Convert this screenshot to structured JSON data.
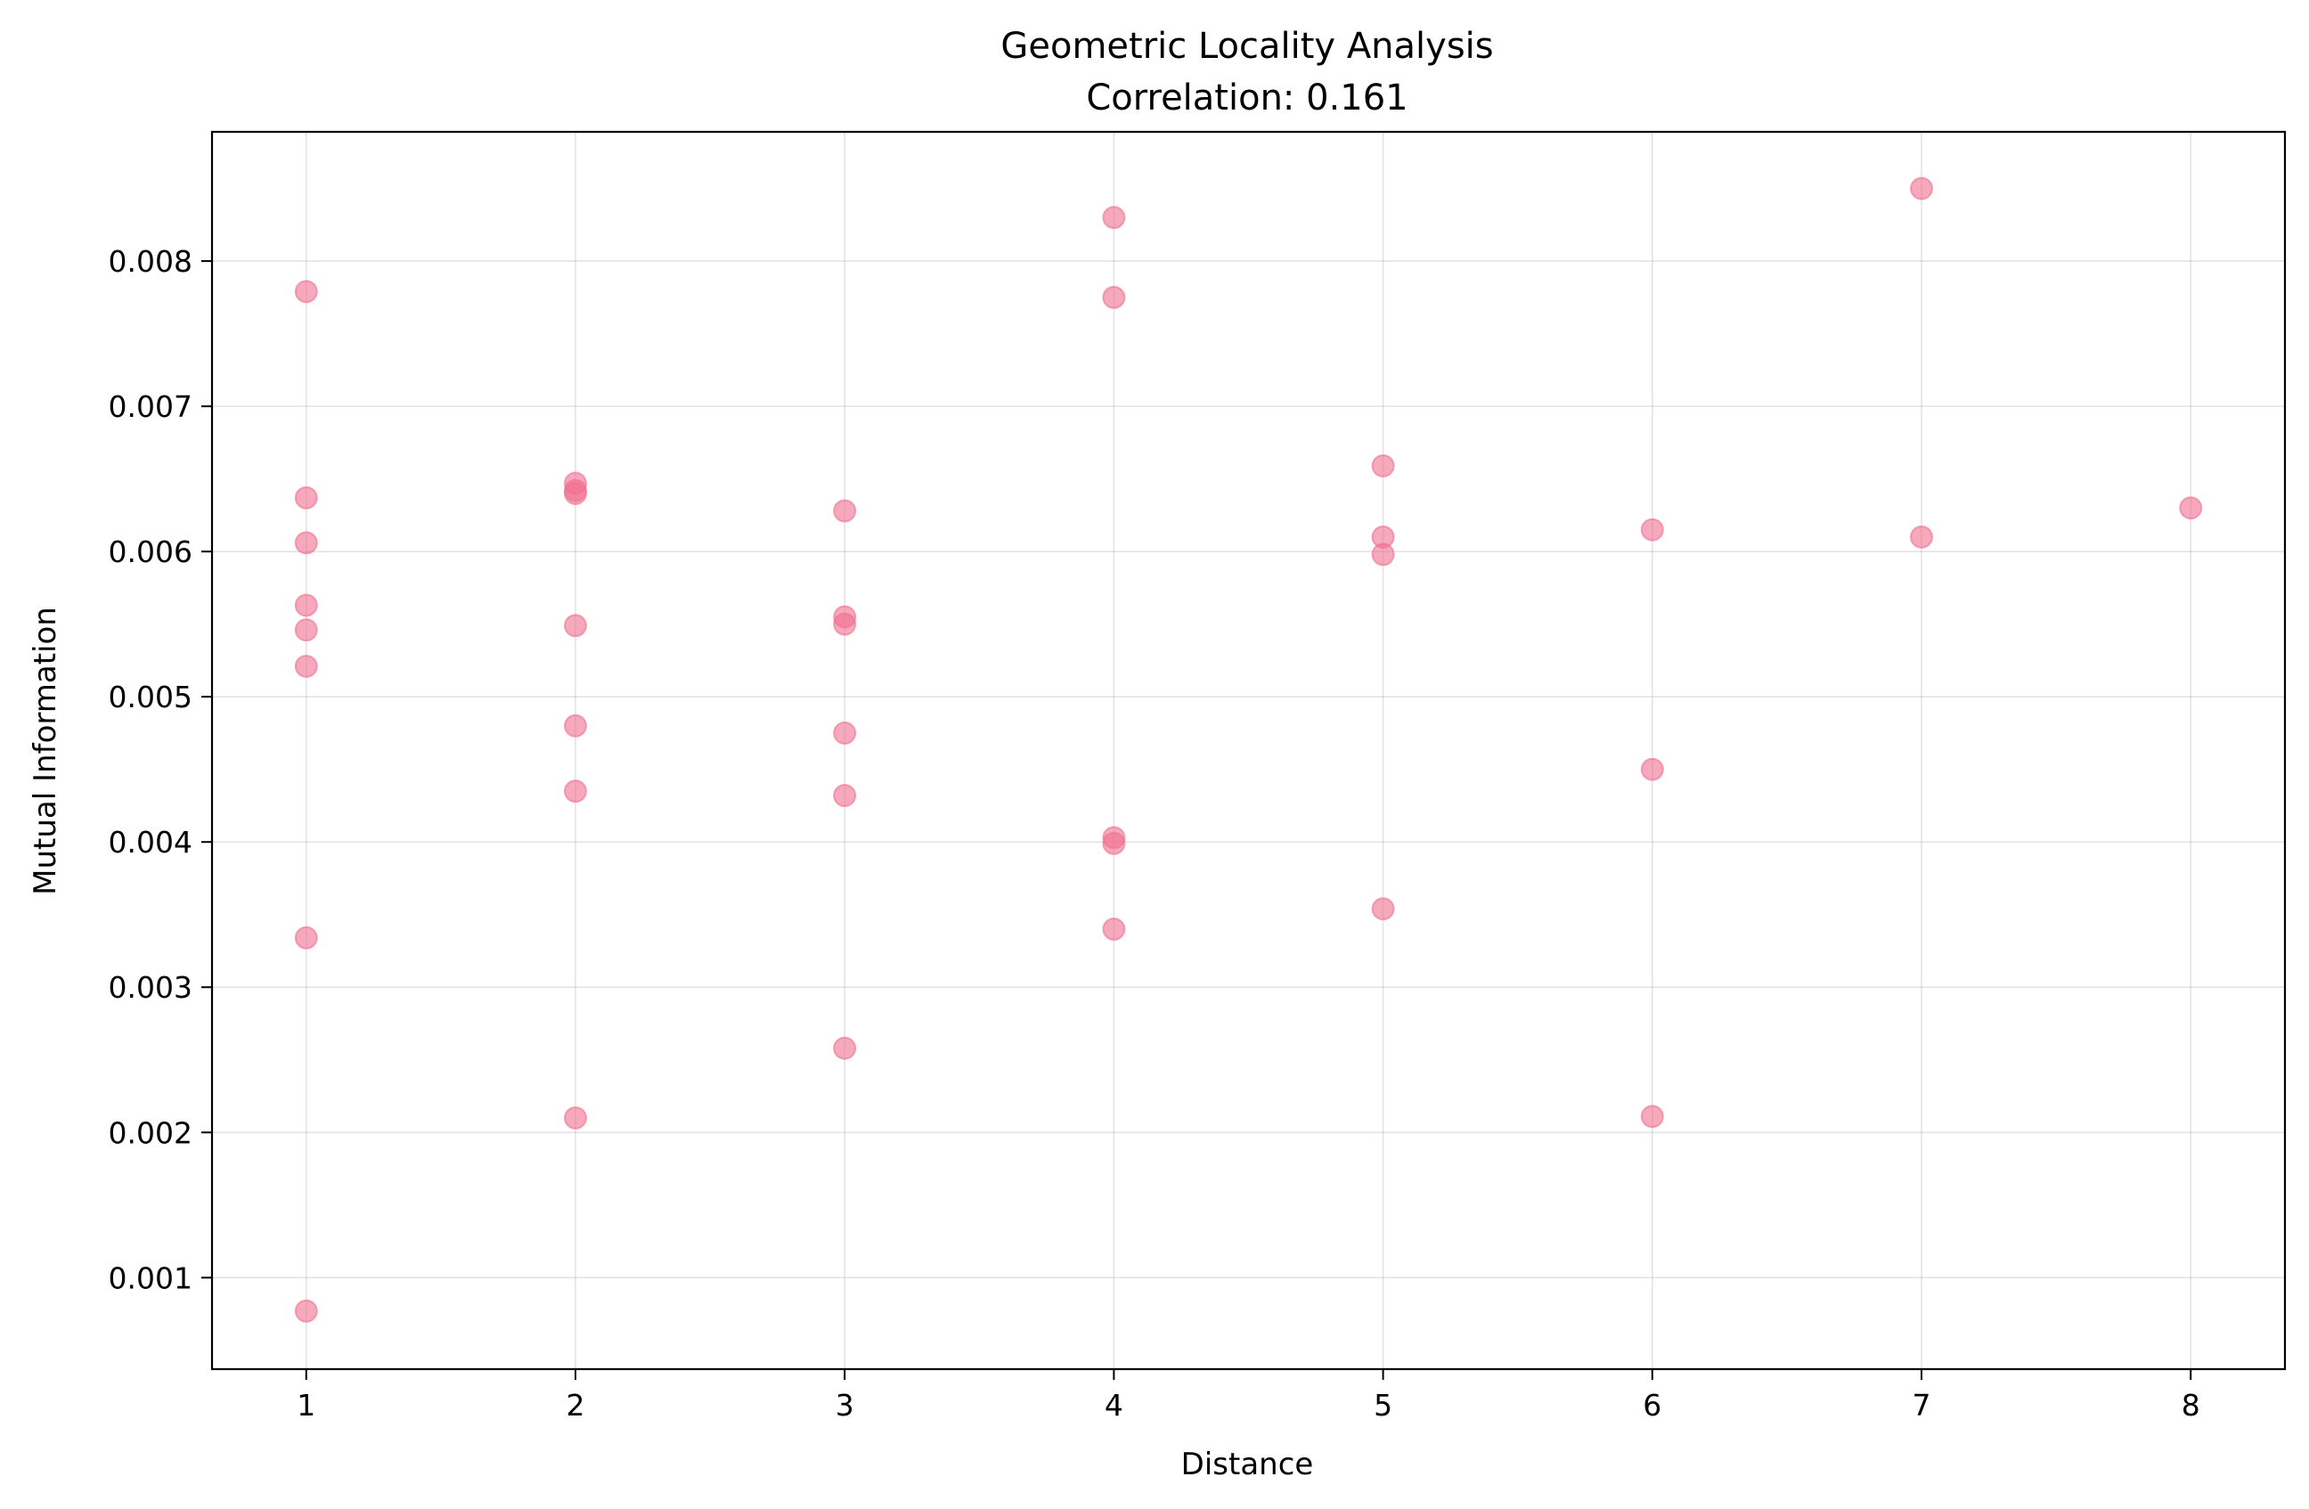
{
  "chart_data": {
    "type": "scatter",
    "title": "Geometric Locality Analysis",
    "subtitle": "Correlation: 0.161",
    "xlabel": "Distance",
    "ylabel": "Mutual Information",
    "xlim": [
      0.65,
      8.35
    ],
    "ylim": [
      0.00037,
      0.00889
    ],
    "xticks": [
      1,
      2,
      3,
      4,
      5,
      6,
      7,
      8
    ],
    "xtick_labels": [
      "1",
      "2",
      "3",
      "4",
      "5",
      "6",
      "7",
      "8"
    ],
    "yticks": [
      0.001,
      0.002,
      0.003,
      0.004,
      0.005,
      0.006,
      0.007,
      0.008
    ],
    "ytick_labels": [
      "0.001",
      "0.002",
      "0.003",
      "0.004",
      "0.005",
      "0.006",
      "0.007",
      "0.008"
    ],
    "grid": true,
    "marker_color": "#f07090",
    "points": [
      {
        "x": 1,
        "y": 0.00779
      },
      {
        "x": 1,
        "y": 0.00637
      },
      {
        "x": 1,
        "y": 0.00606
      },
      {
        "x": 1,
        "y": 0.00563
      },
      {
        "x": 1,
        "y": 0.00546
      },
      {
        "x": 1,
        "y": 0.00521
      },
      {
        "x": 1,
        "y": 0.00334
      },
      {
        "x": 1,
        "y": 0.00077
      },
      {
        "x": 2,
        "y": 0.00647
      },
      {
        "x": 2,
        "y": 0.00642
      },
      {
        "x": 2,
        "y": 0.0064
      },
      {
        "x": 2,
        "y": 0.00549
      },
      {
        "x": 2,
        "y": 0.0048
      },
      {
        "x": 2,
        "y": 0.00435
      },
      {
        "x": 2,
        "y": 0.0021
      },
      {
        "x": 3,
        "y": 0.00628
      },
      {
        "x": 3,
        "y": 0.00555
      },
      {
        "x": 3,
        "y": 0.0055
      },
      {
        "x": 3,
        "y": 0.00475
      },
      {
        "x": 3,
        "y": 0.00432
      },
      {
        "x": 3,
        "y": 0.00258
      },
      {
        "x": 4,
        "y": 0.0083
      },
      {
        "x": 4,
        "y": 0.00775
      },
      {
        "x": 4,
        "y": 0.00403
      },
      {
        "x": 4,
        "y": 0.00399
      },
      {
        "x": 4,
        "y": 0.0034
      },
      {
        "x": 5,
        "y": 0.00659
      },
      {
        "x": 5,
        "y": 0.0061
      },
      {
        "x": 5,
        "y": 0.00598
      },
      {
        "x": 5,
        "y": 0.00354
      },
      {
        "x": 6,
        "y": 0.00615
      },
      {
        "x": 6,
        "y": 0.0045
      },
      {
        "x": 6,
        "y": 0.00211
      },
      {
        "x": 7,
        "y": 0.0085
      },
      {
        "x": 7,
        "y": 0.0061
      },
      {
        "x": 8,
        "y": 0.0063
      }
    ]
  }
}
